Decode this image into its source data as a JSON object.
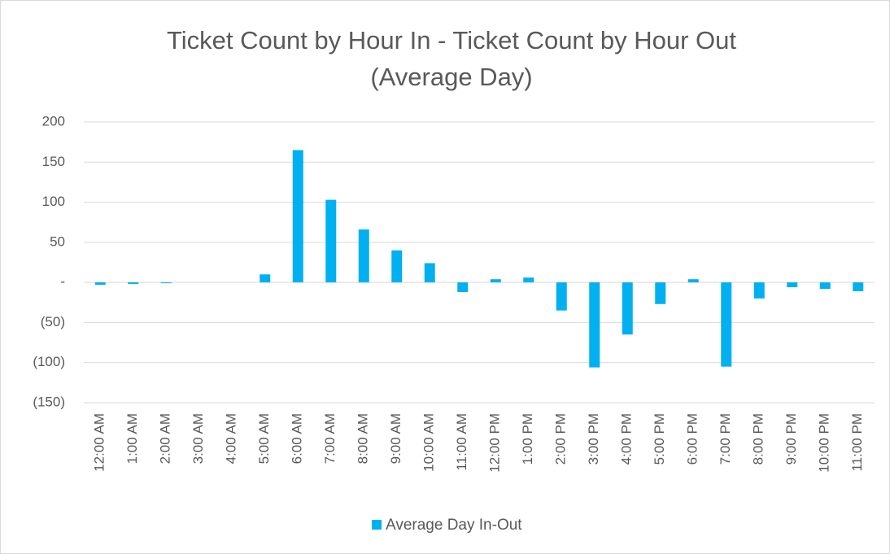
{
  "chart_data": {
    "type": "bar",
    "title": [
      "Ticket Count by Hour In - Ticket Count by Hour Out",
      "(Average Day)"
    ],
    "categories": [
      "12:00 AM",
      "1:00 AM",
      "2:00 AM",
      "3:00 AM",
      "4:00 AM",
      "5:00 AM",
      "6:00 AM",
      "7:00 AM",
      "8:00 AM",
      "9:00 AM",
      "10:00 AM",
      "11:00 AM",
      "12:00 PM",
      "1:00 PM",
      "2:00 PM",
      "3:00 PM",
      "4:00 PM",
      "5:00 PM",
      "6:00 PM",
      "7:00 PM",
      "8:00 PM",
      "9:00 PM",
      "10:00 PM",
      "11:00 PM"
    ],
    "series": [
      {
        "name": "Average Day In-Out",
        "color": "#00b0f0",
        "values": [
          -3,
          -2,
          -1,
          0,
          0,
          10,
          165,
          103,
          66,
          40,
          24,
          -12,
          4,
          6,
          -35,
          -106,
          -65,
          -27,
          4,
          -105,
          -20,
          -6,
          -8,
          -11
        ]
      }
    ],
    "ylim": [
      -150,
      200
    ],
    "yticks": [
      {
        "value": -150,
        "label": "(150)"
      },
      {
        "value": -100,
        "label": "(100)"
      },
      {
        "value": -50,
        "label": "(50)"
      },
      {
        "value": 0,
        "label": "-"
      },
      50,
      100,
      150,
      200
    ],
    "grid": true,
    "legend": "bottom"
  }
}
